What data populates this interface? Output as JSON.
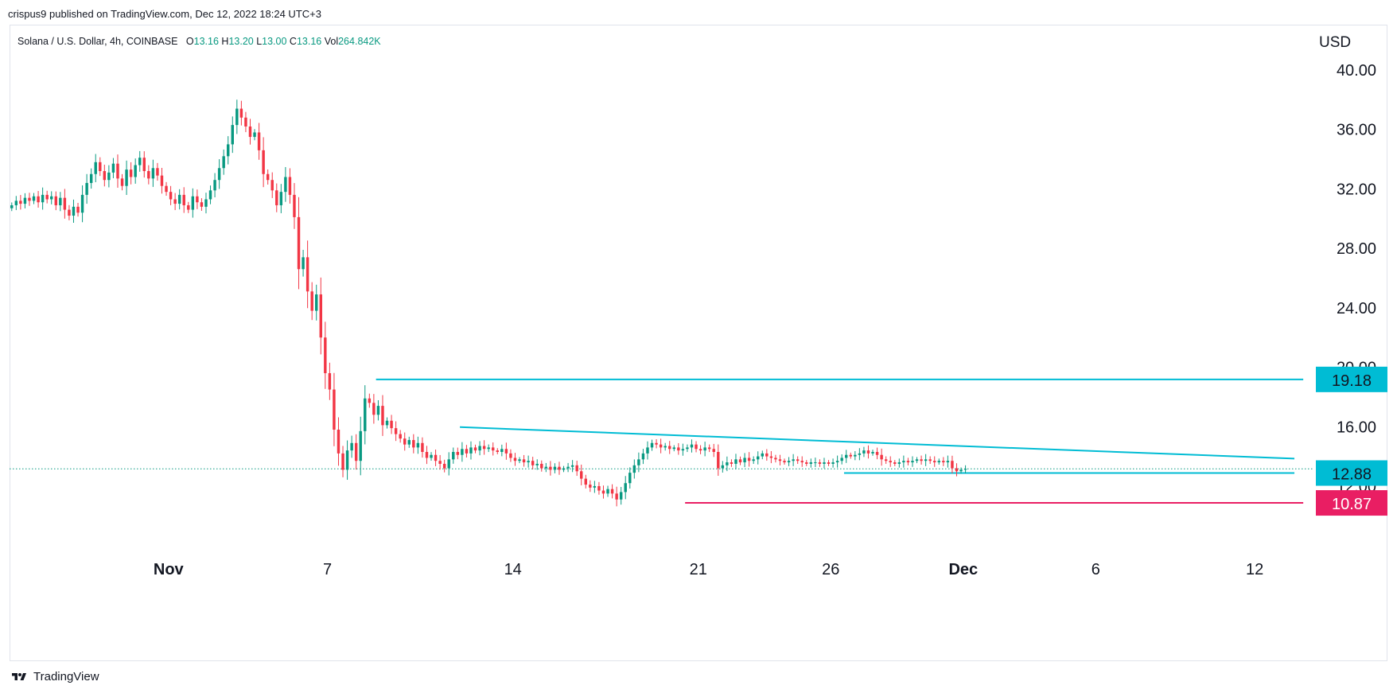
{
  "header": {
    "published": "crispus9 published on TradingView.com, Dec 12, 2022 18:24 UTC+3"
  },
  "legend": {
    "symbol": "Solana / U.S. Dollar, 4h, COINBASE",
    "o_label": "O",
    "o_value": "13.16",
    "h_label": "H",
    "h_value": "13.20",
    "l_label": "L",
    "l_value": "13.00",
    "c_label": "C",
    "c_value": "13.16",
    "vol_label": "Vol",
    "vol_value": "264.842K"
  },
  "currency": "USD",
  "watermark": {
    "text": "TradingView",
    "icon": "tradingview-logo-icon"
  },
  "colors": {
    "up": "#089981",
    "down": "#f23645",
    "cyan": "#00bcd4",
    "support": "#e91e63",
    "price_line": "#089981",
    "text": "#131722",
    "grid_border": "#e0e3eb"
  },
  "chart_data": {
    "type": "candlestick",
    "ylim": [
      7.5,
      41.5
    ],
    "y_ticks": [
      "40.00",
      "36.00",
      "32.00",
      "28.00",
      "24.00",
      "20.00",
      "16.00",
      "12.00"
    ],
    "y_tick_values": [
      40,
      36,
      32,
      28,
      24,
      20,
      16,
      12
    ],
    "x_ticks": [
      {
        "label": "Nov",
        "date": "2022-11-01"
      },
      {
        "label": "7",
        "date": "2022-11-07"
      },
      {
        "label": "14",
        "date": "2022-11-14"
      },
      {
        "label": "21",
        "date": "2022-11-21"
      },
      {
        "label": "26",
        "date": "2022-11-26"
      },
      {
        "label": "Dec",
        "date": "2022-12-01"
      },
      {
        "label": "6",
        "date": "2022-12-06"
      },
      {
        "label": "12",
        "date": "2022-12-12"
      }
    ],
    "xlim": [
      "2022-10-26T00:00",
      "2022-12-15T00:00"
    ],
    "price_labels": [
      {
        "label": "19.18",
        "value": 19.18,
        "color": "#00bcd4"
      },
      {
        "label": "12.88",
        "value": 12.88,
        "color": "#00bcd4"
      },
      {
        "label": "10.87",
        "value": 10.87,
        "color": "#e91e63"
      }
    ],
    "current_price": 13.16,
    "lines": [
      {
        "name": "",
        "kind": "horizontal",
        "value": 19.18,
        "from": "2022-11-08T20:00",
        "to": "2022-12-13T20:00",
        "color": "#00bcd4"
      },
      {
        "name": "",
        "kind": "trend",
        "from": "2022-11-12T00:00",
        "from_value": 15.97,
        "to": "2022-12-13T12:00",
        "to_value": 13.85,
        "color": "#00bcd4"
      },
      {
        "name": "",
        "kind": "horizontal",
        "value": 12.88,
        "from": "2022-11-26T12:00",
        "to": "2022-12-13T12:00",
        "color": "#00bcd4"
      },
      {
        "name": "",
        "kind": "horizontal",
        "value": 10.87,
        "from": "2022-11-20T12:00",
        "to": "2022-12-13T20:00",
        "color": "#e91e63"
      }
    ],
    "candle_start": "2022-10-26T00:00",
    "candle_step_hours": 4,
    "close": [
      30.9,
      31.2,
      31.0,
      31.4,
      31.2,
      31.5,
      31.1,
      31.6,
      31.3,
      31.5,
      30.9,
      31.4,
      30.6,
      30.2,
      30.8,
      30.4,
      31.6,
      32.4,
      33.0,
      33.8,
      33.2,
      32.6,
      33.1,
      33.7,
      32.7,
      32.2,
      33.3,
      32.8,
      33.6,
      34.1,
      33.2,
      32.7,
      33.4,
      32.9,
      32.2,
      31.8,
      31.3,
      31.0,
      31.6,
      30.9,
      30.6,
      31.5,
      31.1,
      30.8,
      31.3,
      31.9,
      32.6,
      33.4,
      34.2,
      35.0,
      36.3,
      37.4,
      36.8,
      36.2,
      35.5,
      35.8,
      34.6,
      33.0,
      32.6,
      31.9,
      30.9,
      31.8,
      32.8,
      31.6,
      30.1,
      26.6,
      27.4,
      25.1,
      23.8,
      24.9,
      22.0,
      19.6,
      18.5,
      15.8,
      14.2,
      13.1,
      14.4,
      14.9,
      13.7,
      15.7,
      17.9,
      17.6,
      16.8,
      17.4,
      16.1,
      16.4,
      15.9,
      15.5,
      15.2,
      14.8,
      15.1,
      14.6,
      14.9,
      14.3,
      13.9,
      14.1,
      13.7,
      13.5,
      13.2,
      13.8,
      14.3,
      14.1,
      14.5,
      14.2,
      14.6,
      14.4,
      14.7,
      14.5,
      14.6,
      14.4,
      14.3,
      14.5,
      14.2,
      13.9,
      13.7,
      13.8,
      13.6,
      13.7,
      13.4,
      13.5,
      13.2,
      13.3,
      13.1,
      13.3,
      13.1,
      13.2,
      13.3,
      13.4,
      13.0,
      12.5,
      12.1,
      11.9,
      12.0,
      11.7,
      11.5,
      11.8,
      11.5,
      11.1,
      11.6,
      12.2,
      12.9,
      13.4,
      13.8,
      14.2,
      14.6,
      14.9,
      14.8,
      14.6,
      14.7,
      14.5,
      14.6,
      14.4,
      14.5,
      14.6,
      14.8,
      14.5,
      14.4,
      14.6,
      14.5,
      14.3,
      13.2,
      13.4,
      13.6,
      13.5,
      13.8,
      13.6,
      13.9,
      13.7,
      13.8,
      14.0,
      14.2,
      14.0,
      13.9,
      13.8,
      13.7,
      13.6,
      13.7,
      13.8,
      13.7,
      13.6,
      13.5,
      13.6,
      13.6,
      13.5,
      13.6,
      13.5,
      13.6,
      13.7,
      13.9,
      14.1,
      14.0,
      14.1,
      14.2,
      14.4,
      14.2,
      14.3,
      14.1,
      13.8,
      13.7,
      13.6,
      13.5,
      13.6,
      13.7,
      13.6,
      13.7,
      13.8,
      13.7,
      13.8,
      13.7,
      13.6,
      13.7,
      13.6,
      13.7,
      13.2,
      13.0,
      13.1,
      13.16
    ]
  }
}
